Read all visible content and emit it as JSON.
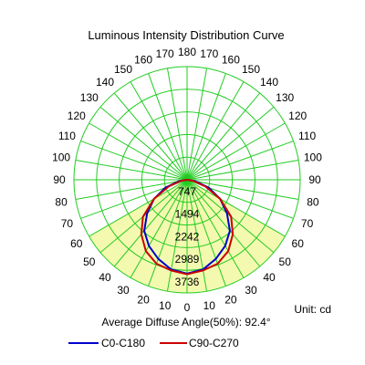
{
  "chart_data": {
    "type": "polar",
    "title": "Luminous Intensity Distribution Curve",
    "unit_label": "Unit: cd",
    "footer": "Average Diffuse Angle(50%): 92.4°",
    "angle_labels_left": [
      "0",
      "10",
      "20",
      "30",
      "40",
      "50",
      "60",
      "70",
      "80",
      "90",
      "100",
      "110",
      "120",
      "130",
      "140",
      "150",
      "160",
      "170",
      "180"
    ],
    "angle_labels_right": [
      "0",
      "10",
      "20",
      "30",
      "40",
      "50",
      "60",
      "70",
      "80",
      "90",
      "100",
      "110",
      "120",
      "130",
      "140",
      "150",
      "160",
      "170",
      "180"
    ],
    "radial_ticks": [
      747,
      1494,
      2242,
      2989,
      3736
    ],
    "r_max": 3736,
    "grid": true,
    "legend_position": "bottom",
    "colors": {
      "grid": "#22cc22",
      "fill": "#f4f9b0",
      "c0": "#0000cc",
      "c90": "#cc0000"
    },
    "series": [
      {
        "name": "C0-C180",
        "color": "#0000cc",
        "angles": [
          0,
          10,
          20,
          30,
          40,
          50,
          60,
          70,
          80,
          90
        ],
        "values": [
          3100,
          3010,
          2780,
          2520,
          2200,
          1720,
          1260,
          760,
          280,
          0
        ]
      },
      {
        "name": "C90-C270",
        "color": "#cc0000",
        "angles": [
          0,
          10,
          20,
          30,
          40,
          50,
          60,
          70,
          80,
          90
        ],
        "values": [
          3120,
          3040,
          2950,
          2720,
          2350,
          1900,
          1260,
          640,
          200,
          0
        ]
      }
    ]
  }
}
